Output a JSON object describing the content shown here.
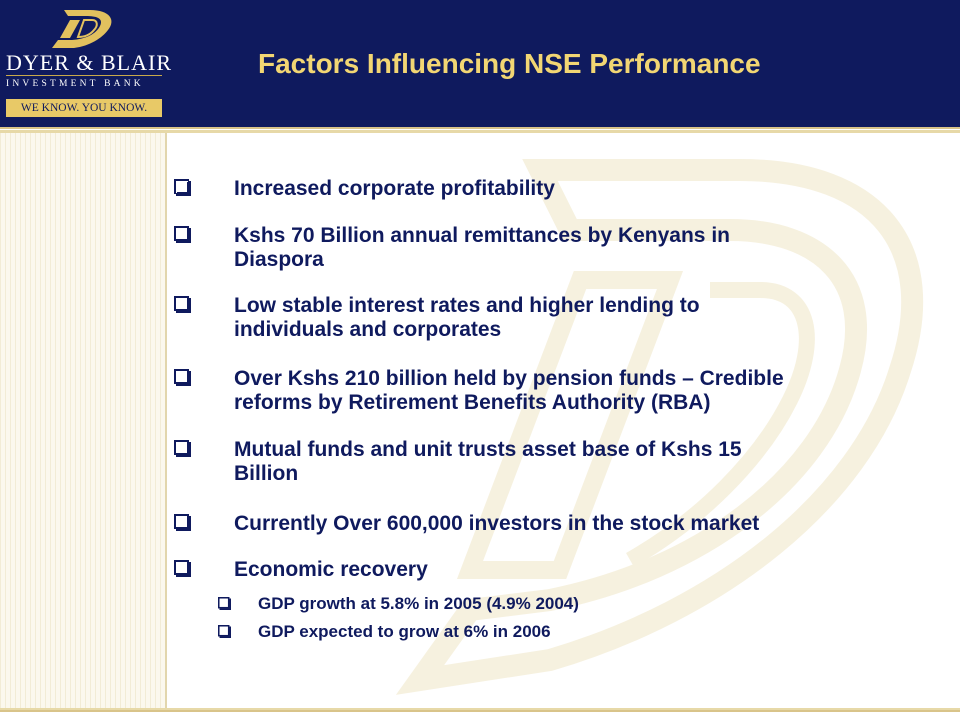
{
  "logo": {
    "name": "DYER & BLAIR",
    "subtitle": "INVESTMENT BANK",
    "tagline": "WE KNOW. YOU KNOW."
  },
  "slide": {
    "title": "Factors Influencing NSE Performance"
  },
  "bullets": [
    {
      "lines": [
        "Increased corporate profitability"
      ]
    },
    {
      "lines": [
        "Kshs 70 Billion annual remittances by Kenyans in",
        "Diaspora"
      ]
    },
    {
      "lines": [
        "Low stable interest rates and higher lending to",
        "individuals and corporates"
      ]
    },
    {
      "lines": [
        "Over Kshs 210 billion held by pension funds – Credible",
        "reforms by Retirement Benefits Authority (RBA)"
      ]
    },
    {
      "lines": [
        "Mutual funds and unit trusts asset base of Kshs 15",
        "Billion"
      ]
    },
    {
      "lines": [
        "Currently Over 600,000 investors in the stock market"
      ]
    },
    {
      "lines": [
        "Economic recovery"
      ]
    }
  ],
  "sub_bullets": [
    "GDP growth at 5.8% in 2005 (4.9% 2004)",
    "GDP expected to grow at 6% in 2006"
  ],
  "colors": {
    "navy": "#0f1a5e",
    "gold": "#f2d673",
    "watermark": "#efe6c6"
  }
}
